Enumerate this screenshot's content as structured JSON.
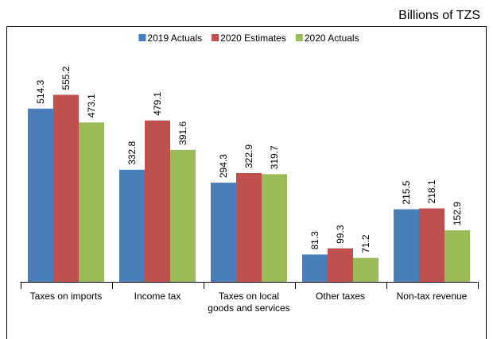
{
  "chart_data": {
    "type": "bar",
    "subtitle": "Billions of TZS",
    "categories": [
      "Taxes on imports",
      "Income tax",
      "Taxes on local goods and services",
      "Other taxes",
      "Non-tax revenue"
    ],
    "series": [
      {
        "name": "2019 Actuals",
        "color": "#4a7ebb",
        "values": [
          514.3,
          332.8,
          294.3,
          81.3,
          215.5
        ]
      },
      {
        "name": "2020 Estimates",
        "color": "#c0504d",
        "values": [
          555.2,
          479.1,
          322.9,
          99.3,
          218.1
        ]
      },
      {
        "name": "2020 Actuals",
        "color": "#9bbb59",
        "values": [
          473.1,
          391.6,
          319.7,
          71.2,
          152.9
        ]
      }
    ],
    "ylim": [
      0,
      700
    ],
    "legend": "top"
  }
}
